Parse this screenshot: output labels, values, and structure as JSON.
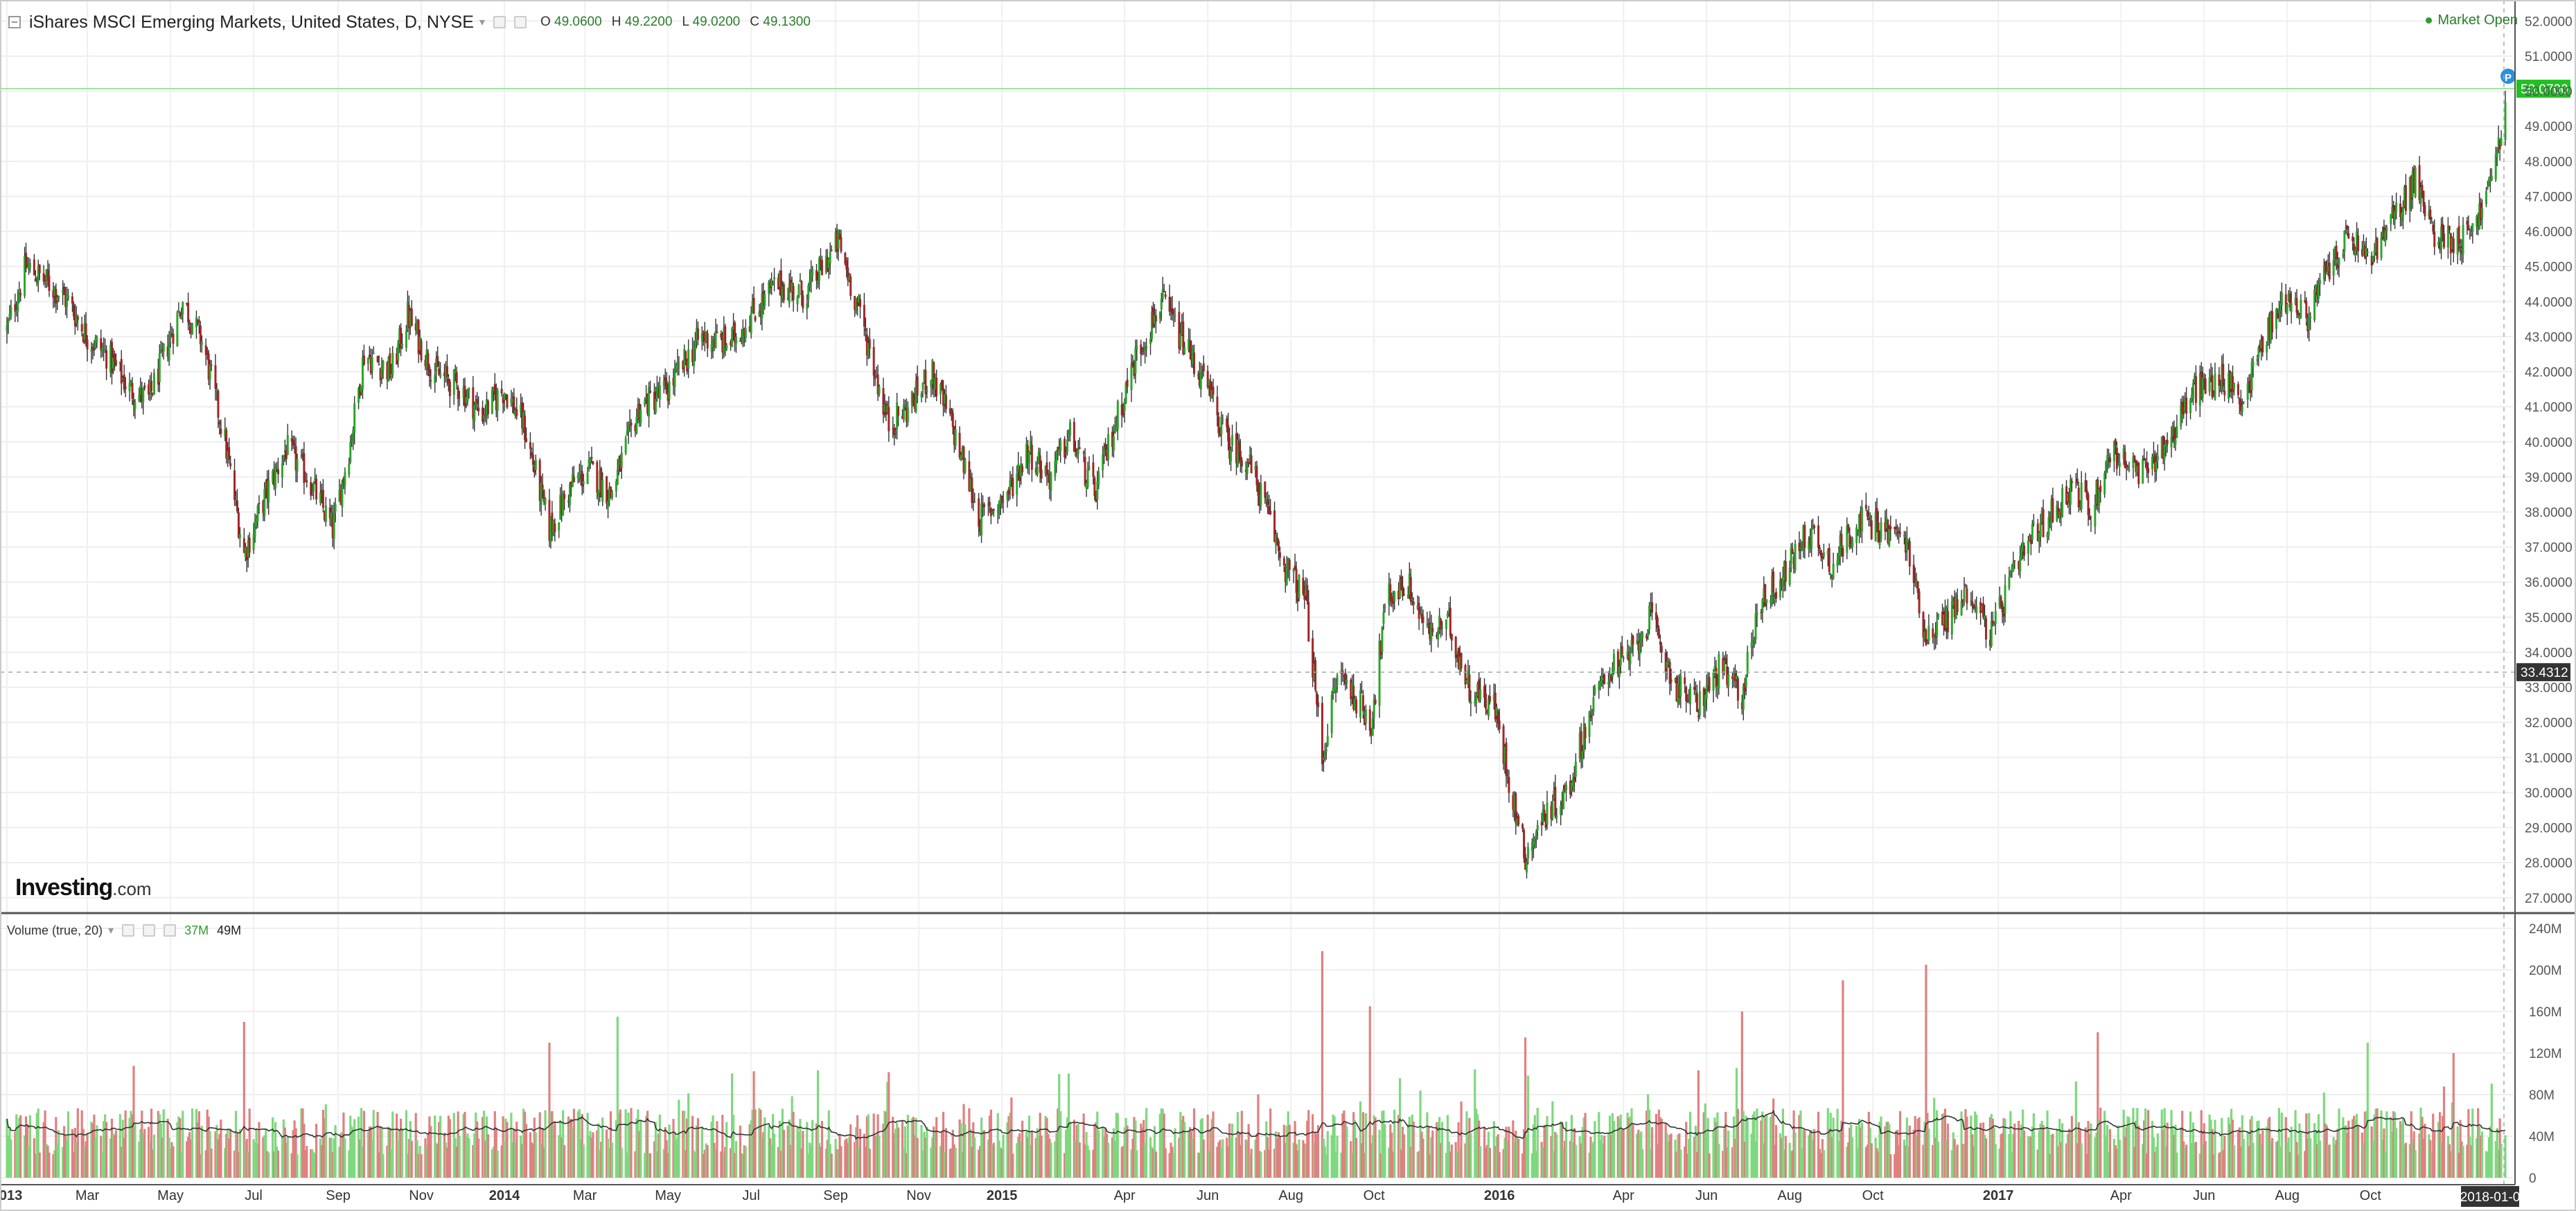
{
  "legend": {
    "title": "iShares MSCI Emerging Markets, United States, D, NYSE",
    "open_label": "O",
    "open_value": "49.0600",
    "high_label": "H",
    "high_value": "49.2200",
    "low_label": "L",
    "low_value": "49.0200",
    "close_label": "C",
    "close_value": "49.1300"
  },
  "status": {
    "market": "Market Open"
  },
  "logo": {
    "brand": "Investing",
    "suffix": ".com"
  },
  "volume_legend": {
    "title": "Volume (true, 20)",
    "value1": "37M",
    "value2": "49M"
  },
  "colors": {
    "up": "#2aa52a",
    "down": "#a12626",
    "vol_up": "#7fd87f",
    "vol_down": "#e08080",
    "last_price": "#22c022",
    "crosshair_label": "#333333"
  },
  "chart_data": [
    {
      "type": "candlestick",
      "title": "iShares MSCI Emerging Markets, United States, D, NYSE",
      "y_axis_position": "right",
      "ylim": [
        26.6,
        52.6
      ],
      "y_ticks": [
        "52.0000",
        "51.0000",
        "50.0000",
        "49.0000",
        "48.0000",
        "47.0000",
        "46.0000",
        "45.0000",
        "44.0000",
        "43.0000",
        "42.0000",
        "41.0000",
        "40.0000",
        "39.0000",
        "38.0000",
        "37.0000",
        "36.0000",
        "35.0000",
        "34.0000",
        "33.0000",
        "32.0000",
        "31.0000",
        "30.0000",
        "29.0000",
        "28.0000",
        "27.0000"
      ],
      "x_ticks": [
        {
          "label": "2013",
          "date": "2013-01-01",
          "bold": true
        },
        {
          "label": "Mar",
          "date": "2013-03-01"
        },
        {
          "label": "May",
          "date": "2013-05-01"
        },
        {
          "label": "Jul",
          "date": "2013-07-01"
        },
        {
          "label": "Sep",
          "date": "2013-09-01"
        },
        {
          "label": "Nov",
          "date": "2013-11-01"
        },
        {
          "label": "2014",
          "date": "2014-01-01",
          "bold": true
        },
        {
          "label": "Mar",
          "date": "2014-03-01"
        },
        {
          "label": "May",
          "date": "2014-05-01"
        },
        {
          "label": "Jul",
          "date": "2014-07-01"
        },
        {
          "label": "Sep",
          "date": "2014-09-01"
        },
        {
          "label": "Nov",
          "date": "2014-11-01"
        },
        {
          "label": "2015",
          "date": "2015-01-01",
          "bold": true
        },
        {
          "label": "Apr",
          "date": "2015-04-01"
        },
        {
          "label": "Jun",
          "date": "2015-06-01"
        },
        {
          "label": "Aug",
          "date": "2015-08-01"
        },
        {
          "label": "Oct",
          "date": "2015-10-01"
        },
        {
          "label": "2016",
          "date": "2016-01-01",
          "bold": true
        },
        {
          "label": "Apr",
          "date": "2016-04-01"
        },
        {
          "label": "Jun",
          "date": "2016-06-01"
        },
        {
          "label": "Aug",
          "date": "2016-08-01"
        },
        {
          "label": "Oct",
          "date": "2016-10-01"
        },
        {
          "label": "2017",
          "date": "2017-01-01",
          "bold": true
        },
        {
          "label": "Apr",
          "date": "2017-04-01"
        },
        {
          "label": "Jun",
          "date": "2017-06-01"
        },
        {
          "label": "Aug",
          "date": "2017-08-01"
        },
        {
          "label": "Oct",
          "date": "2017-10-01"
        }
      ],
      "x_range": [
        "2013-01-01",
        "2018-01-08"
      ],
      "last_price": 50.07,
      "last_price_label": "50.0700",
      "crosshair_price": 33.4312,
      "crosshair_label": "33.4312",
      "crosshair_date_label": "2018-01-0",
      "price_path": [
        {
          "date": "2013-01-01",
          "close": 43.2
        },
        {
          "date": "2013-01-15",
          "close": 45.0
        },
        {
          "date": "2013-02-01",
          "close": 44.5
        },
        {
          "date": "2013-02-15",
          "close": 44.0
        },
        {
          "date": "2013-03-01",
          "close": 43.0
        },
        {
          "date": "2013-03-15",
          "close": 42.5
        },
        {
          "date": "2013-04-01",
          "close": 41.5
        },
        {
          "date": "2013-04-15",
          "close": 41.2
        },
        {
          "date": "2013-05-01",
          "close": 43.0
        },
        {
          "date": "2013-05-10",
          "close": 44.0
        },
        {
          "date": "2013-05-25",
          "close": 42.8
        },
        {
          "date": "2013-06-10",
          "close": 40.0
        },
        {
          "date": "2013-06-24",
          "close": 36.8
        },
        {
          "date": "2013-07-10",
          "close": 38.5
        },
        {
          "date": "2013-07-25",
          "close": 39.8
        },
        {
          "date": "2013-08-10",
          "close": 39.0
        },
        {
          "date": "2013-08-28",
          "close": 37.5
        },
        {
          "date": "2013-09-10",
          "close": 40.0
        },
        {
          "date": "2013-09-20",
          "close": 42.5
        },
        {
          "date": "2013-10-10",
          "close": 42.0
        },
        {
          "date": "2013-10-22",
          "close": 43.6
        },
        {
          "date": "2013-11-10",
          "close": 42.0
        },
        {
          "date": "2013-12-01",
          "close": 41.5
        },
        {
          "date": "2013-12-15",
          "close": 40.8
        },
        {
          "date": "2014-01-01",
          "close": 41.5
        },
        {
          "date": "2014-01-15",
          "close": 40.5
        },
        {
          "date": "2014-02-03",
          "close": 37.5
        },
        {
          "date": "2014-02-20",
          "close": 38.8
        },
        {
          "date": "2014-03-05",
          "close": 39.2
        },
        {
          "date": "2014-03-20",
          "close": 38.5
        },
        {
          "date": "2014-04-10",
          "close": 41.0
        },
        {
          "date": "2014-05-01",
          "close": 41.5
        },
        {
          "date": "2014-05-25",
          "close": 43.0
        },
        {
          "date": "2014-06-15",
          "close": 42.8
        },
        {
          "date": "2014-07-05",
          "close": 43.8
        },
        {
          "date": "2014-07-20",
          "close": 44.5
        },
        {
          "date": "2014-08-10",
          "close": 44.2
        },
        {
          "date": "2014-09-03",
          "close": 45.7
        },
        {
          "date": "2014-09-20",
          "close": 43.5
        },
        {
          "date": "2014-10-10",
          "close": 40.5
        },
        {
          "date": "2014-10-25",
          "close": 41.0
        },
        {
          "date": "2014-11-10",
          "close": 42.0
        },
        {
          "date": "2014-11-25",
          "close": 40.5
        },
        {
          "date": "2014-12-16",
          "close": 37.8
        },
        {
          "date": "2015-01-05",
          "close": 38.5
        },
        {
          "date": "2015-01-20",
          "close": 39.8
        },
        {
          "date": "2015-02-05",
          "close": 39.0
        },
        {
          "date": "2015-02-20",
          "close": 40.2
        },
        {
          "date": "2015-03-10",
          "close": 38.5
        },
        {
          "date": "2015-03-25",
          "close": 40.5
        },
        {
          "date": "2015-04-10",
          "close": 42.5
        },
        {
          "date": "2015-04-28",
          "close": 44.0
        },
        {
          "date": "2015-05-15",
          "close": 42.8
        },
        {
          "date": "2015-06-01",
          "close": 41.5
        },
        {
          "date": "2015-06-15",
          "close": 40.0
        },
        {
          "date": "2015-06-30",
          "close": 39.5
        },
        {
          "date": "2015-07-10",
          "close": 38.5
        },
        {
          "date": "2015-07-27",
          "close": 36.5
        },
        {
          "date": "2015-08-12",
          "close": 35.5
        },
        {
          "date": "2015-08-24",
          "close": 31.0
        },
        {
          "date": "2015-09-05",
          "close": 33.5
        },
        {
          "date": "2015-09-29",
          "close": 32.0
        },
        {
          "date": "2015-10-10",
          "close": 35.5
        },
        {
          "date": "2015-10-25",
          "close": 36.0
        },
        {
          "date": "2015-11-10",
          "close": 34.5
        },
        {
          "date": "2015-11-25",
          "close": 34.8
        },
        {
          "date": "2015-12-10",
          "close": 33.0
        },
        {
          "date": "2015-12-28",
          "close": 32.5
        },
        {
          "date": "2016-01-10",
          "close": 30.0
        },
        {
          "date": "2016-01-20",
          "close": 28.2
        },
        {
          "date": "2016-02-05",
          "close": 29.5
        },
        {
          "date": "2016-02-20",
          "close": 30.0
        },
        {
          "date": "2016-03-05",
          "close": 32.0
        },
        {
          "date": "2016-03-20",
          "close": 33.5
        },
        {
          "date": "2016-04-05",
          "close": 33.8
        },
        {
          "date": "2016-04-20",
          "close": 35.0
        },
        {
          "date": "2016-05-10",
          "close": 33.0
        },
        {
          "date": "2016-05-25",
          "close": 32.5
        },
        {
          "date": "2016-06-10",
          "close": 33.5
        },
        {
          "date": "2016-06-27",
          "close": 32.8
        },
        {
          "date": "2016-07-10",
          "close": 35.5
        },
        {
          "date": "2016-07-25",
          "close": 36.0
        },
        {
          "date": "2016-08-15",
          "close": 37.5
        },
        {
          "date": "2016-09-01",
          "close": 36.5
        },
        {
          "date": "2016-09-20",
          "close": 37.8
        },
        {
          "date": "2016-10-10",
          "close": 37.5
        },
        {
          "date": "2016-10-25",
          "close": 37.2
        },
        {
          "date": "2016-11-09",
          "close": 34.5
        },
        {
          "date": "2016-11-25",
          "close": 35.0
        },
        {
          "date": "2016-12-10",
          "close": 35.8
        },
        {
          "date": "2016-12-27",
          "close": 34.5
        },
        {
          "date": "2017-01-10",
          "close": 36.0
        },
        {
          "date": "2017-01-25",
          "close": 37.2
        },
        {
          "date": "2017-02-10",
          "close": 38.0
        },
        {
          "date": "2017-02-25",
          "close": 38.8
        },
        {
          "date": "2017-03-10",
          "close": 38.0
        },
        {
          "date": "2017-03-25",
          "close": 39.8
        },
        {
          "date": "2017-04-15",
          "close": 39.0
        },
        {
          "date": "2017-05-05",
          "close": 40.0
        },
        {
          "date": "2017-05-25",
          "close": 41.5
        },
        {
          "date": "2017-06-15",
          "close": 41.8
        },
        {
          "date": "2017-06-30",
          "close": 41.2
        },
        {
          "date": "2017-07-15",
          "close": 43.0
        },
        {
          "date": "2017-08-01",
          "close": 44.2
        },
        {
          "date": "2017-08-15",
          "close": 43.5
        },
        {
          "date": "2017-09-01",
          "close": 45.0
        },
        {
          "date": "2017-09-15",
          "close": 45.8
        },
        {
          "date": "2017-10-01",
          "close": 45.2
        },
        {
          "date": "2017-10-20",
          "close": 46.5
        },
        {
          "date": "2017-11-03",
          "close": 47.5
        },
        {
          "date": "2017-11-15",
          "close": 46.0
        },
        {
          "date": "2017-11-28",
          "close": 45.8
        },
        {
          "date": "2017-12-08",
          "close": 45.8
        },
        {
          "date": "2017-12-20",
          "close": 46.5
        },
        {
          "date": "2017-12-29",
          "close": 47.5
        },
        {
          "date": "2018-01-08",
          "close": 49.6
        }
      ]
    },
    {
      "type": "bar",
      "title": "Volume (true, 20)",
      "y_axis_position": "right",
      "ylim": [
        0,
        240000000
      ],
      "y_ticks": [
        "240M",
        "200M",
        "160M",
        "120M",
        "80M",
        "40M",
        "0"
      ],
      "moving_average_period": 20,
      "typical_volume": 50000000,
      "spikes": [
        {
          "date": "2013-06-24",
          "volume": 150000000
        },
        {
          "date": "2014-02-03",
          "volume": 130000000
        },
        {
          "date": "2014-03-25",
          "volume": 155000000
        },
        {
          "date": "2015-08-24",
          "volume": 218000000
        },
        {
          "date": "2015-09-28",
          "volume": 165000000
        },
        {
          "date": "2016-01-20",
          "volume": 135000000
        },
        {
          "date": "2016-06-27",
          "volume": 160000000
        },
        {
          "date": "2016-09-09",
          "volume": 190000000
        },
        {
          "date": "2016-11-09",
          "volume": 205000000
        },
        {
          "date": "2017-03-15",
          "volume": 140000000
        },
        {
          "date": "2017-09-29",
          "volume": 130000000
        },
        {
          "date": "2017-12-01",
          "volume": 120000000
        }
      ]
    }
  ]
}
